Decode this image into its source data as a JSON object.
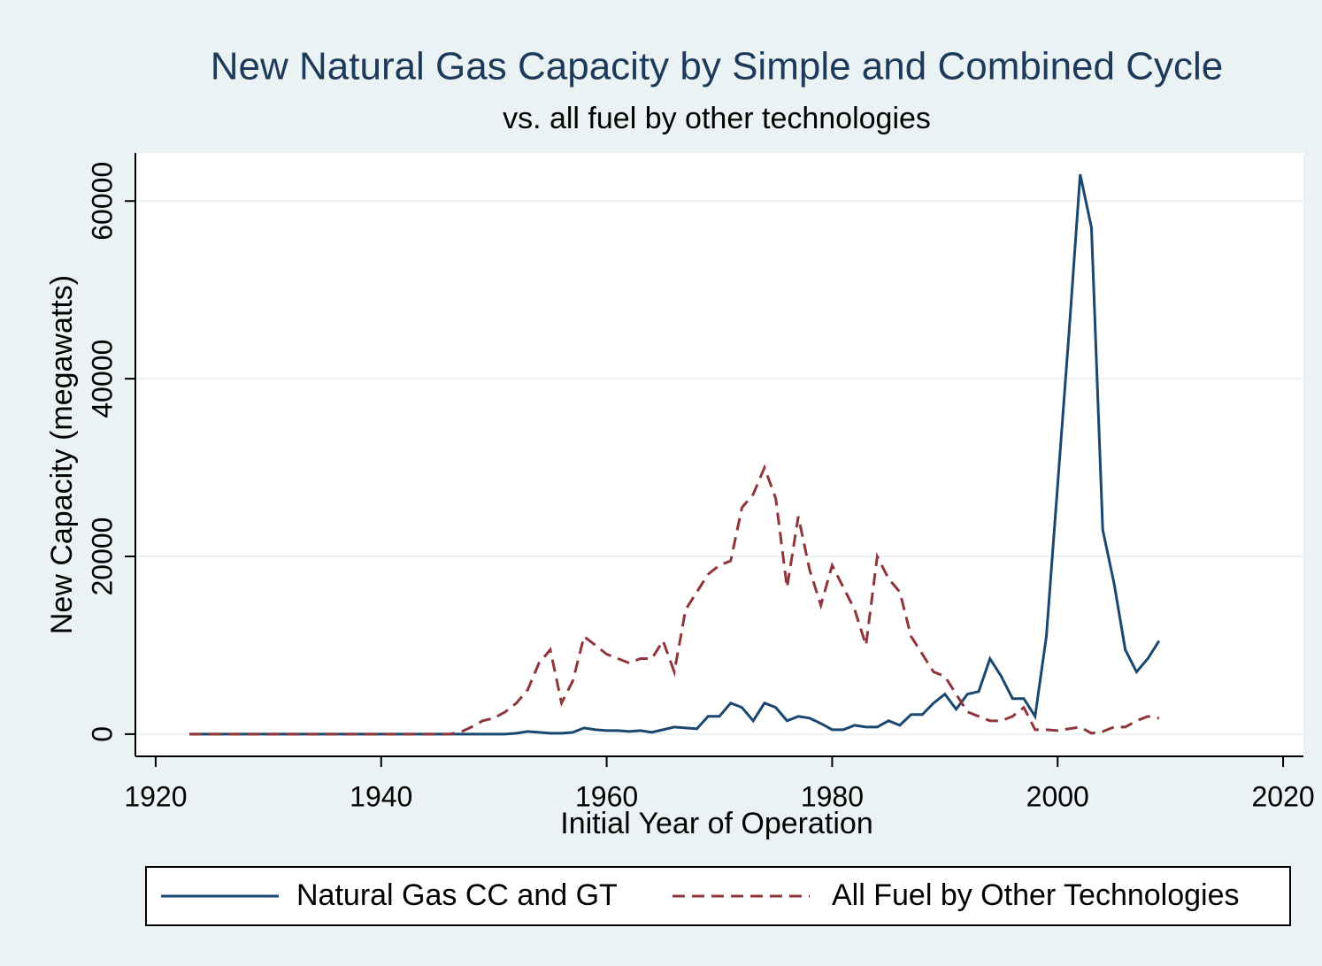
{
  "chart_data": {
    "type": "line",
    "title": "New Natural Gas Capacity by Simple and Combined Cycle",
    "subtitle": "vs. all fuel by other technologies",
    "x_label": "Initial Year of Operation",
    "y_label": "New Capacity (megawatts)",
    "x": [
      1923,
      1924,
      1925,
      1926,
      1927,
      1928,
      1929,
      1930,
      1931,
      1932,
      1933,
      1934,
      1935,
      1936,
      1937,
      1938,
      1939,
      1940,
      1941,
      1942,
      1943,
      1944,
      1945,
      1946,
      1947,
      1948,
      1949,
      1950,
      1951,
      1952,
      1953,
      1954,
      1955,
      1956,
      1957,
      1958,
      1959,
      1960,
      1961,
      1962,
      1963,
      1964,
      1965,
      1966,
      1967,
      1968,
      1969,
      1970,
      1971,
      1972,
      1973,
      1974,
      1975,
      1976,
      1977,
      1978,
      1979,
      1980,
      1981,
      1982,
      1983,
      1984,
      1985,
      1986,
      1987,
      1988,
      1989,
      1990,
      1991,
      1992,
      1993,
      1994,
      1995,
      1996,
      1997,
      1998,
      1999,
      2000,
      2001,
      2002,
      2003,
      2004,
      2005,
      2006,
      2007,
      2008,
      2009
    ],
    "series": [
      {
        "name": "Natural Gas CC and GT",
        "color": "#1a476f",
        "dash": false,
        "values": [
          0,
          0,
          0,
          0,
          0,
          0,
          0,
          0,
          0,
          0,
          0,
          0,
          0,
          0,
          0,
          0,
          0,
          0,
          0,
          0,
          0,
          0,
          0,
          0,
          0,
          0,
          0,
          0,
          0,
          100,
          300,
          200,
          100,
          100,
          200,
          700,
          500,
          400,
          400,
          300,
          400,
          200,
          500,
          800,
          700,
          600,
          2000,
          2000,
          3500,
          3000,
          1500,
          3500,
          3000,
          1500,
          2000,
          1800,
          1200,
          500,
          500,
          1000,
          800,
          800,
          1500,
          1000,
          2200,
          2200,
          3500,
          4500,
          2800,
          4500,
          4800,
          8500,
          6500,
          4000,
          4000,
          2000,
          11000,
          28000,
          45000,
          63000,
          57000,
          23000,
          17000,
          9500,
          7000,
          8500,
          10500
        ]
      },
      {
        "name": "All Fuel by Other Technologies",
        "color": "#90353b",
        "dash": true,
        "values": [
          0,
          0,
          0,
          0,
          0,
          0,
          0,
          0,
          0,
          0,
          0,
          0,
          0,
          0,
          0,
          0,
          0,
          0,
          0,
          0,
          0,
          0,
          0,
          0,
          200,
          800,
          1500,
          1800,
          2500,
          3500,
          5000,
          8000,
          9500,
          3500,
          6000,
          11000,
          10000,
          9000,
          8500,
          8000,
          8500,
          8500,
          10500,
          7000,
          14000,
          16000,
          18000,
          19000,
          19500,
          25500,
          27000,
          30000,
          26500,
          16500,
          24500,
          18500,
          14500,
          19000,
          16500,
          14000,
          10000,
          20000,
          17500,
          16000,
          11000,
          9000,
          7000,
          6500,
          4500,
          2500,
          2000,
          1500,
          1500,
          2000,
          3000,
          500,
          500,
          400,
          600,
          800,
          100,
          300,
          800,
          800,
          1500,
          2000,
          1800
        ]
      }
    ],
    "xlim": [
      1918.2,
      2021.8
    ],
    "xticks": [
      1920,
      1940,
      1960,
      1980,
      2000,
      2020
    ],
    "ylim": [
      -2500,
      65400
    ],
    "yticks": [
      0,
      20000,
      40000,
      60000
    ],
    "grid": true,
    "legend": "bottom"
  }
}
